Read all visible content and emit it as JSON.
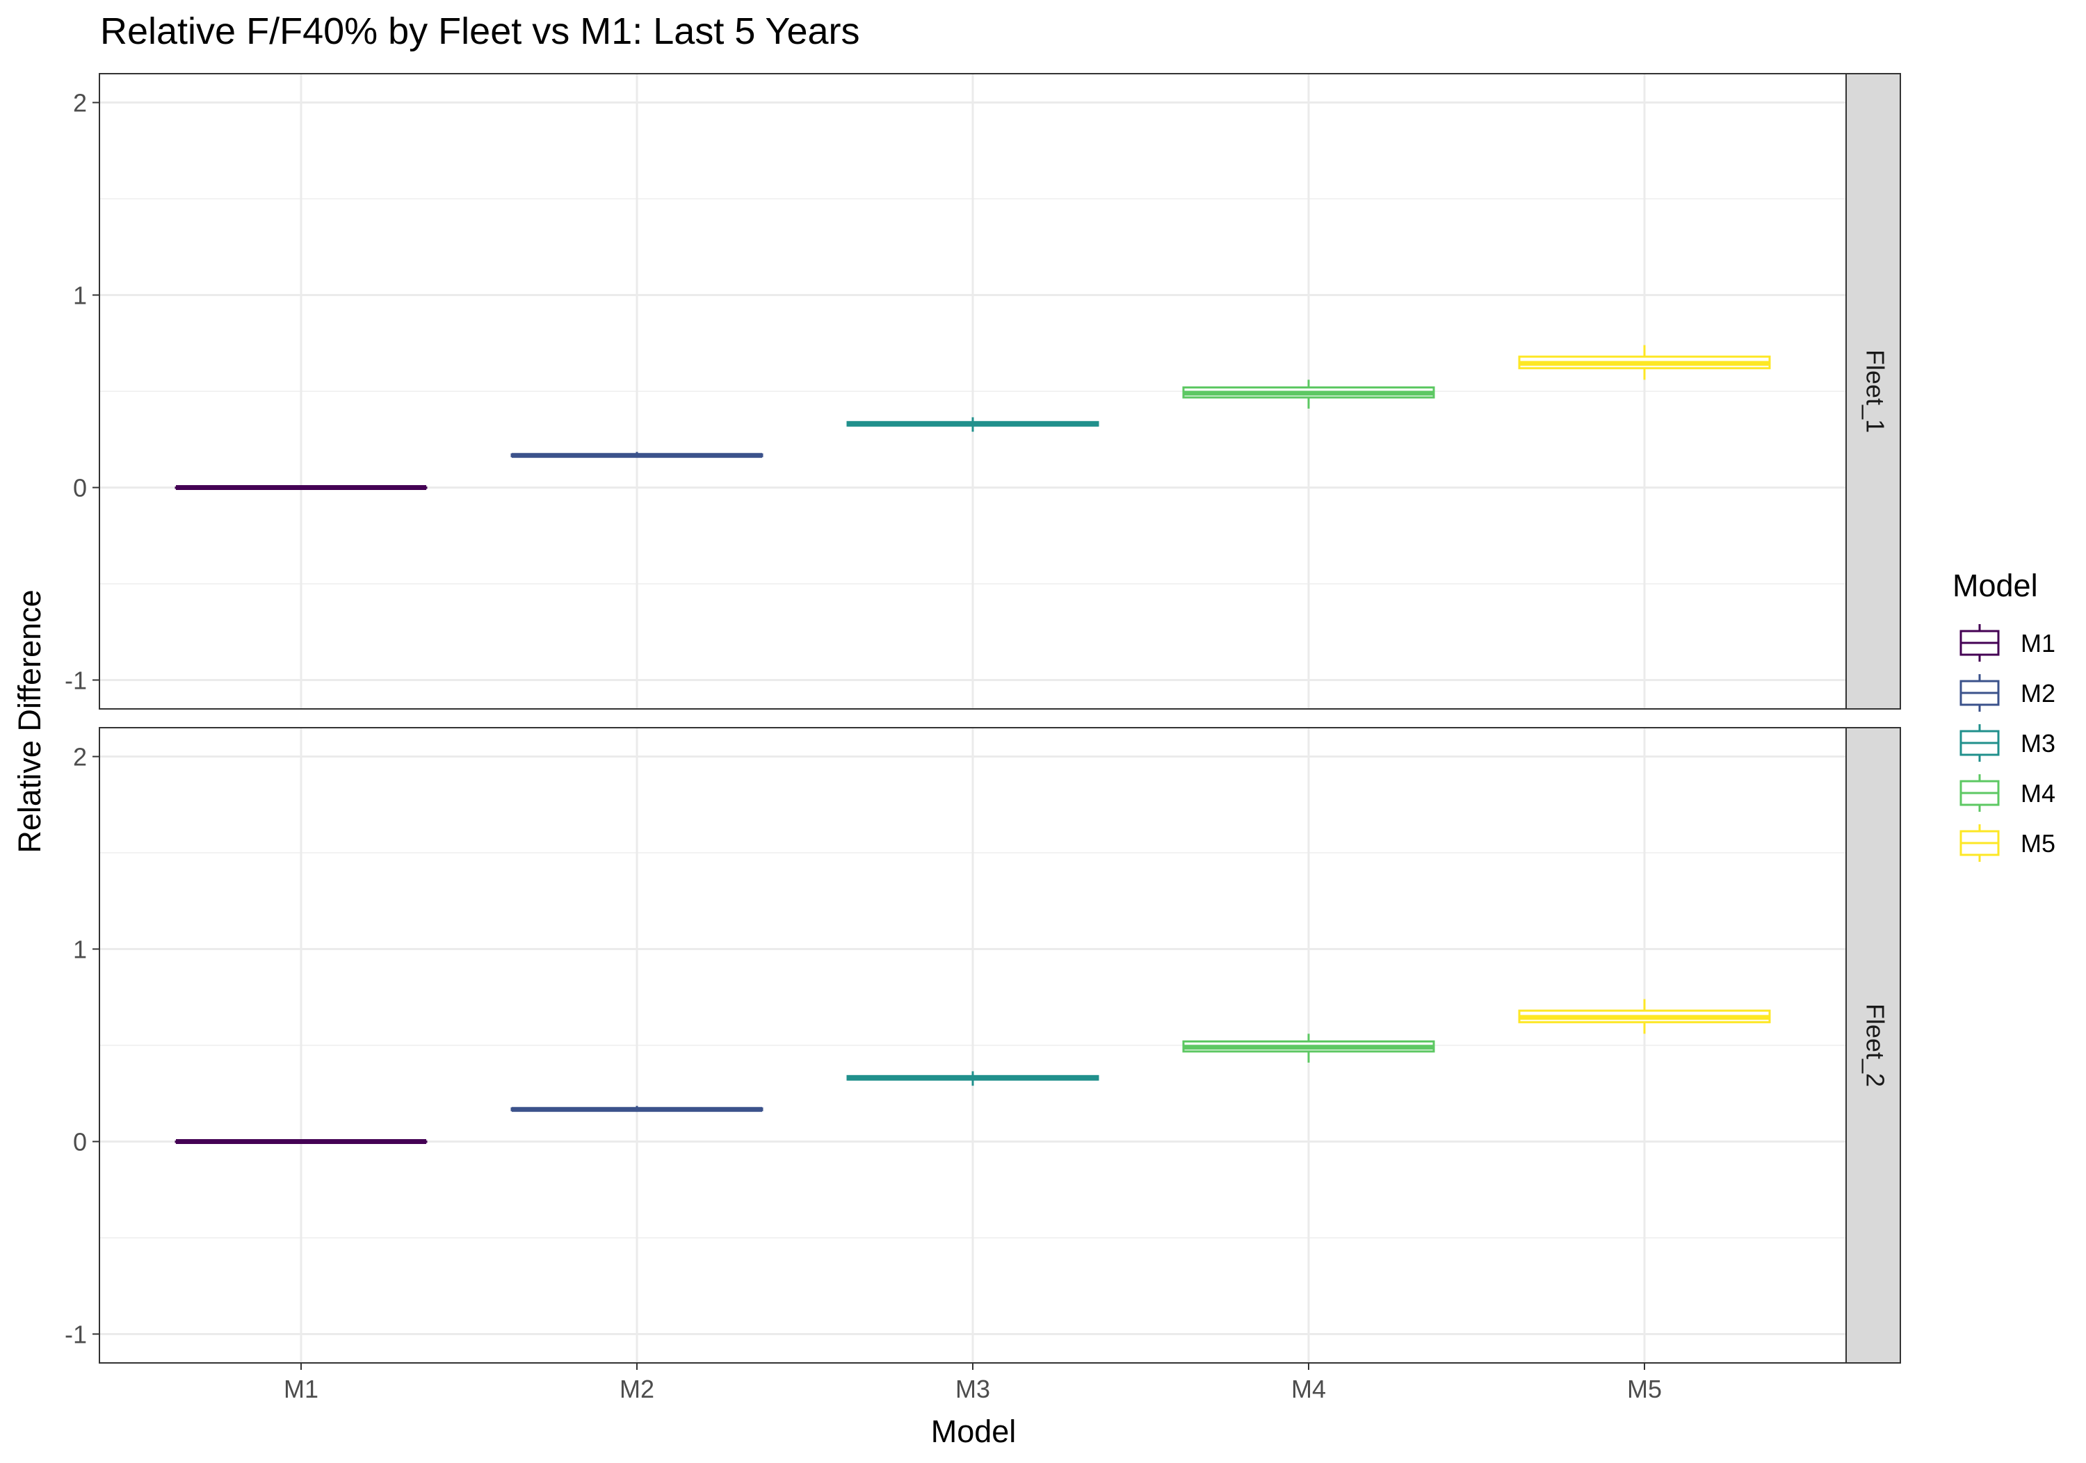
{
  "chart_data": {
    "type": "boxplot",
    "title": "Relative F/F40% by Fleet vs M1: Last 5 Years",
    "xlabel": "Model",
    "ylabel": "Relative Difference",
    "categories": [
      "M1",
      "M2",
      "M3",
      "M4",
      "M5"
    ],
    "ylim": [
      -1.15,
      2.15
    ],
    "yticks": [
      -1,
      0,
      1,
      2
    ],
    "grid": true,
    "legend": {
      "title": "Model",
      "position": "right",
      "entries": [
        "M1",
        "M2",
        "M3",
        "M4",
        "M5"
      ]
    },
    "colors": {
      "M1": "#440154",
      "M2": "#3B528B",
      "M3": "#21908C",
      "M4": "#5DC863",
      "M5": "#FDE725"
    },
    "panels": [
      {
        "name": "Fleet_1",
        "boxes": [
          {
            "category": "M1",
            "min": 0.0,
            "q1": 0.0,
            "median": 0.0,
            "q3": 0.0,
            "max": 0.0
          },
          {
            "category": "M2",
            "min": 0.155,
            "q1": 0.163,
            "median": 0.167,
            "q3": 0.172,
            "max": 0.185
          },
          {
            "category": "M3",
            "min": 0.29,
            "q1": 0.322,
            "median": 0.33,
            "q3": 0.34,
            "max": 0.365
          },
          {
            "category": "M4",
            "min": 0.41,
            "q1": 0.468,
            "median": 0.49,
            "q3": 0.52,
            "max": 0.56
          },
          {
            "category": "M5",
            "min": 0.56,
            "q1": 0.62,
            "median": 0.645,
            "q3": 0.68,
            "max": 0.74
          }
        ]
      },
      {
        "name": "Fleet_2",
        "boxes": [
          {
            "category": "M1",
            "min": 0.0,
            "q1": 0.0,
            "median": 0.0,
            "q3": 0.0,
            "max": 0.0
          },
          {
            "category": "M2",
            "min": 0.155,
            "q1": 0.163,
            "median": 0.167,
            "q3": 0.172,
            "max": 0.185
          },
          {
            "category": "M3",
            "min": 0.29,
            "q1": 0.322,
            "median": 0.33,
            "q3": 0.34,
            "max": 0.365
          },
          {
            "category": "M4",
            "min": 0.41,
            "q1": 0.468,
            "median": 0.49,
            "q3": 0.52,
            "max": 0.56
          },
          {
            "category": "M5",
            "min": 0.56,
            "q1": 0.62,
            "median": 0.645,
            "q3": 0.68,
            "max": 0.74
          }
        ]
      }
    ]
  }
}
